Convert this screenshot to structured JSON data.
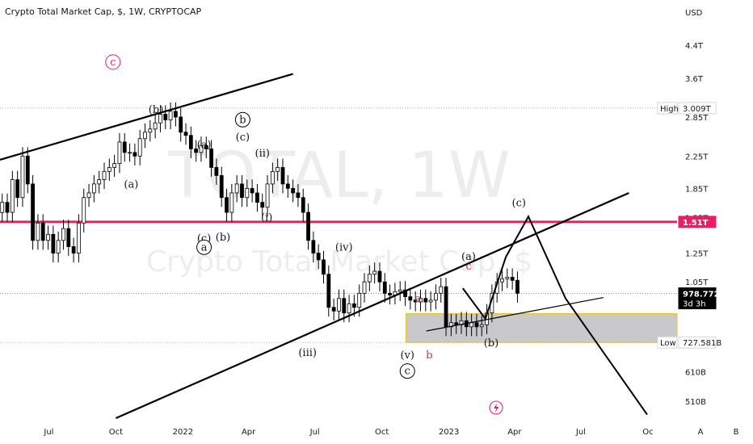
{
  "header": {
    "title": "Crypto Total Market Cap, $, 1W, CRYPTOCAP"
  },
  "watermark": {
    "symbol": "TOTAL, 1W",
    "name": "Crypto Total Market Cap, $"
  },
  "y_axis": {
    "unit": "USD",
    "ticks": [
      {
        "label": "4.4T",
        "value": 4.4
      },
      {
        "label": "3.6T",
        "value": 3.6
      },
      {
        "label": "2.85T",
        "value": 2.85
      },
      {
        "label": "2.25T",
        "value": 2.25
      },
      {
        "label": "1.85T",
        "value": 1.85
      },
      {
        "label": "1.55T",
        "value": 1.55
      },
      {
        "label": "1.25T",
        "value": 1.25
      },
      {
        "label": "1.05T",
        "value": 1.05
      },
      {
        "label": "610B",
        "value": 0.61
      },
      {
        "label": "510B",
        "value": 0.51
      }
    ],
    "high": {
      "tag": "High",
      "label": "3.009T",
      "value": 3.009
    },
    "low": {
      "tag": "Low",
      "label": "727.581B",
      "value": 0.7276
    },
    "level": {
      "label": "1.51T",
      "value": 1.51
    },
    "price": {
      "label": "978.772B",
      "countdown": "3d 3h",
      "value": 0.9788
    }
  },
  "x_axis": {
    "ticks": [
      {
        "label": "Jul",
        "x": "2021-07-01"
      },
      {
        "label": "Oct",
        "x": "2021-10-01"
      },
      {
        "label": "2022",
        "x": "2022-01-01"
      },
      {
        "label": "Apr",
        "x": "2022-04-01"
      },
      {
        "label": "Jul",
        "x": "2022-07-01"
      },
      {
        "label": "Oct",
        "x": "2022-10-01"
      },
      {
        "label": "2023",
        "x": "2023-01-01"
      },
      {
        "label": "Apr",
        "x": "2023-04-01"
      },
      {
        "label": "Jul",
        "x": "2023-07-01"
      },
      {
        "label": "Oc",
        "x": "2023-10-01"
      }
    ],
    "buttons": [
      "A",
      "B"
    ]
  },
  "chart_data": {
    "type": "candlestick",
    "title": "Crypto Total Market Cap, $, 1W, CRYPTOCAP",
    "ylabel": "USD",
    "log_scale": true,
    "x_range": [
      "2021-04-25",
      "2023-11-10"
    ],
    "y_range": [
      0.46,
      5.0
    ],
    "candle_color_up": "#ffffff",
    "candle_color_down": "#000000",
    "closes": [
      1.7,
      1.6,
      1.95,
      1.75,
      2.25,
      1.9,
      1.35,
      1.5,
      1.35,
      1.4,
      1.25,
      1.35,
      1.45,
      1.3,
      1.25,
      1.5,
      1.75,
      1.8,
      1.9,
      1.95,
      2.05,
      2.1,
      2.15,
      2.45,
      2.3,
      2.3,
      2.25,
      2.5,
      2.6,
      2.65,
      2.75,
      2.9,
      2.8,
      2.95,
      2.85,
      2.6,
      2.55,
      2.35,
      2.3,
      2.4,
      2.35,
      2.1,
      2.0,
      1.75,
      1.6,
      1.8,
      1.9,
      1.75,
      1.85,
      1.8,
      1.7,
      1.65,
      1.9,
      2.05,
      2.1,
      1.9,
      1.85,
      1.8,
      1.75,
      1.6,
      1.35,
      1.25,
      1.2,
      1.1,
      0.9,
      0.88,
      0.95,
      0.87,
      0.92,
      0.9,
      0.98,
      1.05,
      1.1,
      1.12,
      1.05,
      0.98,
      0.97,
      0.99,
      1.0,
      0.96,
      0.94,
      0.93,
      0.95,
      0.93,
      0.94,
      0.98,
      1.02,
      0.8,
      0.82,
      0.81,
      0.83,
      0.8,
      0.82,
      0.8,
      0.81,
      0.87,
      0.98,
      1.05,
      1.07,
      1.08,
      1.06,
      0.98
    ],
    "levels": [
      {
        "name": "High",
        "value": 3.009
      },
      {
        "name": "Low",
        "value": 0.7276
      },
      {
        "name": "Horizontal level",
        "value": 1.51,
        "color": "#e91e63"
      },
      {
        "name": "Last price",
        "value": 0.9788
      }
    ],
    "zone": {
      "from": 0.7276,
      "to": 0.8665,
      "start": "2022-11-03"
    },
    "trendlines": [
      {
        "points": [
          [
            "2021-04-25",
            2.2
          ],
          [
            "2022-06-01",
            3.7
          ]
        ]
      },
      {
        "points": [
          [
            "2021-10-01",
            0.46
          ],
          [
            "2023-09-05",
            1.8
          ]
        ]
      },
      {
        "points": [
          [
            "2022-12-01",
            0.78
          ],
          [
            "2023-08-01",
            0.955
          ]
        ]
      }
    ],
    "projection": {
      "points": [
        [
          "2023-01-20",
          1.01
        ],
        [
          "2023-02-20",
          0.84
        ],
        [
          "2023-03-20",
          1.22
        ],
        [
          "2023-04-20",
          1.56
        ],
        [
          "2023-06-10",
          0.95
        ],
        [
          "2023-09-30",
          0.47
        ]
      ]
    },
    "wave_labels": [
      {
        "text": "c",
        "style": "circle-red",
        "x": "2021-09-27",
        "y": 3.9
      },
      {
        "text": "(b)",
        "x": "2021-11-25",
        "y": 2.92
      },
      {
        "text": "(a)",
        "x": "2022-01-30",
        "y": 2.36
      },
      {
        "text": "(a)",
        "x": "2021-10-22",
        "y": 1.86
      },
      {
        "text": "b",
        "style": "circle",
        "x": "2022-03-24",
        "y": 2.75
      },
      {
        "text": "(c)",
        "x": "2022-03-24",
        "y": 2.47
      },
      {
        "text": "(ii)",
        "x": "2022-04-20",
        "y": 2.24
      },
      {
        "text": "(i)",
        "x": "2022-04-26",
        "y": 1.52
      },
      {
        "text": "(c)",
        "x": "2022-01-30",
        "y": 1.34
      },
      {
        "text": "a",
        "style": "circle",
        "x": "2022-01-30",
        "y": 1.27
      },
      {
        "text": "(b)",
        "x": "2022-02-25",
        "y": 1.35
      },
      {
        "text": "(iv)",
        "x": "2022-08-10",
        "y": 1.27
      },
      {
        "text": "(iii)",
        "x": "2022-06-21",
        "y": 0.67
      },
      {
        "text": "a",
        "style": "red",
        "x": "2022-11-20",
        "y": 0.93
      },
      {
        "text": "(v)",
        "x": "2022-11-05",
        "y": 0.66
      },
      {
        "text": "c",
        "style": "circle",
        "x": "2022-11-05",
        "y": 0.6
      },
      {
        "text": "b",
        "style": "red",
        "x": "2022-12-05",
        "y": 0.66
      },
      {
        "text": "(a)",
        "x": "2023-01-28",
        "y": 1.2
      },
      {
        "text": "c",
        "style": "red",
        "x": "2023-01-28",
        "y": 1.13
      },
      {
        "text": "(b)",
        "x": "2023-02-28",
        "y": 0.71
      },
      {
        "text": "(c)",
        "x": "2023-04-07",
        "y": 1.66
      }
    ]
  }
}
